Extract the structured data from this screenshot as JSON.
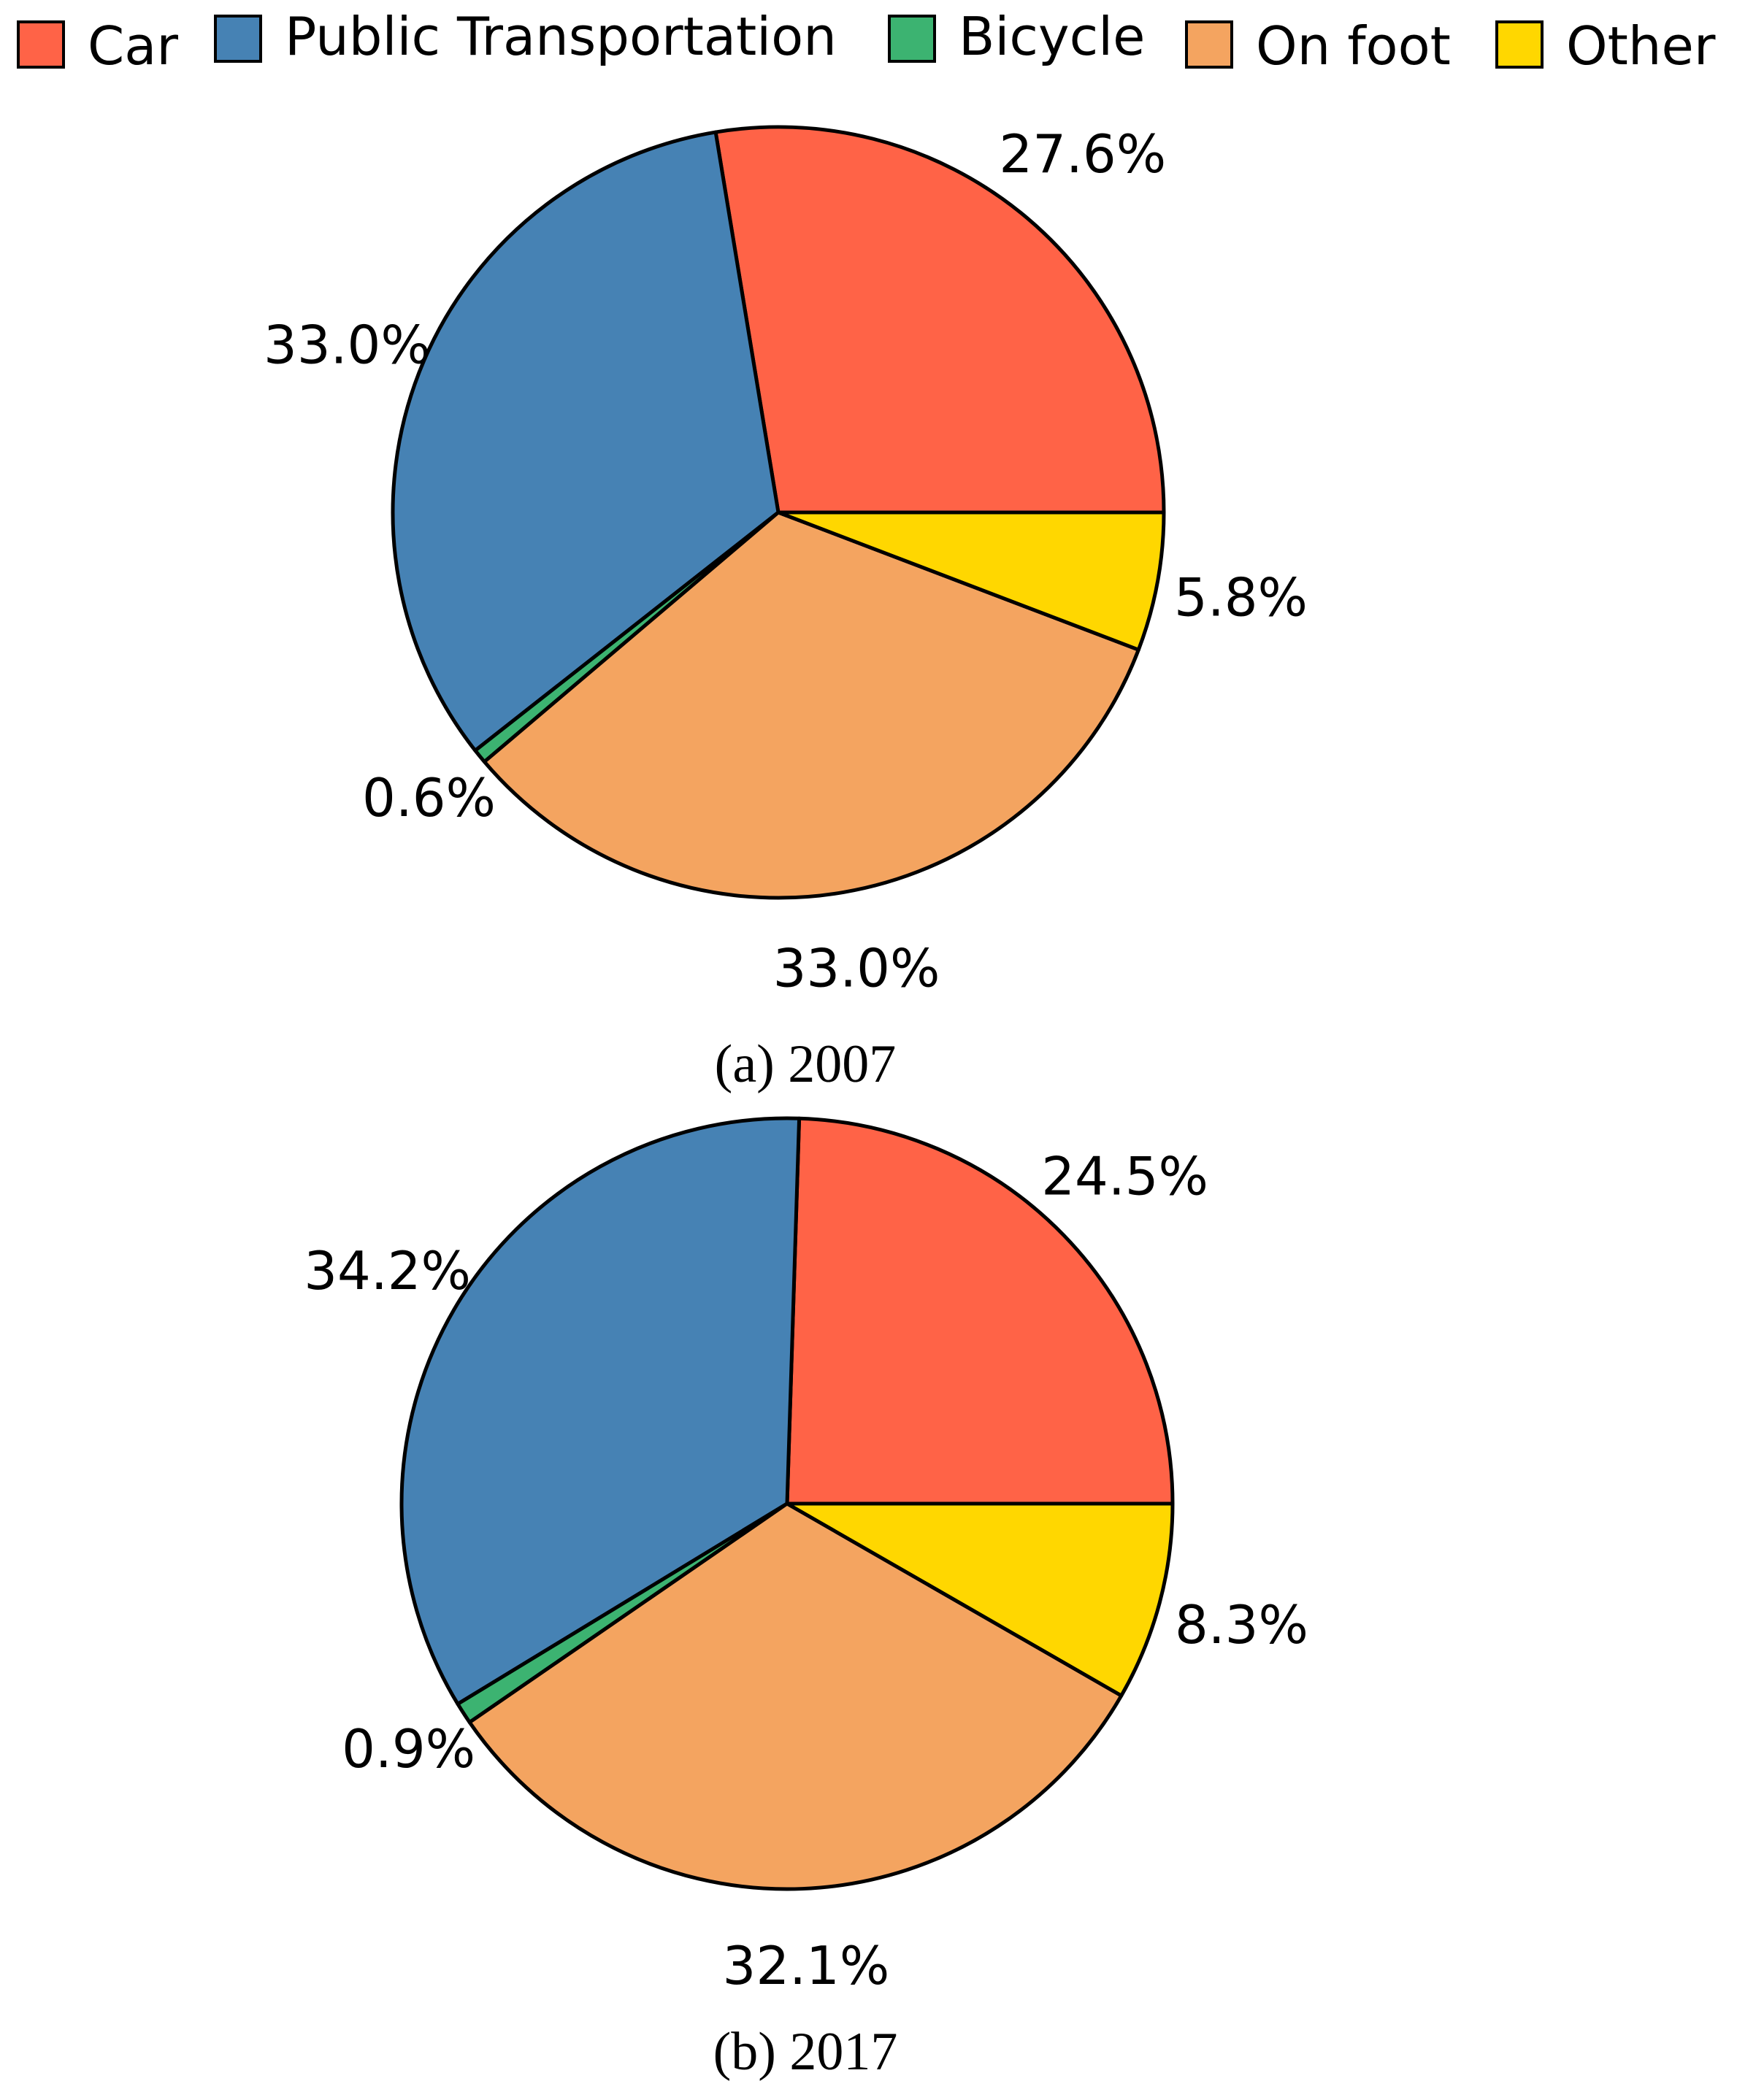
{
  "legend": {
    "items": [
      {
        "label": "Car",
        "color": "#FF6347"
      },
      {
        "label": "Public Transportation",
        "color": "#4682B4"
      },
      {
        "label": "Bicycle",
        "color": "#3CB371"
      },
      {
        "label": "On foot",
        "color": "#F4A460"
      },
      {
        "label": "Other",
        "color": "#FFD700"
      }
    ]
  },
  "chart_data": [
    {
      "type": "pie",
      "caption": "(a) 2007",
      "start_angle_deg": 0,
      "direction": "counterclockwise",
      "categories": [
        "Car",
        "Public Transportation",
        "Bicycle",
        "On foot",
        "Other"
      ],
      "values": [
        27.6,
        33.0,
        0.6,
        33.0,
        5.8
      ],
      "labels": [
        "27.6%",
        "33.0%",
        "0.6%",
        "33.0%",
        "5.8%"
      ],
      "colors": [
        "#FF6347",
        "#4682B4",
        "#3CB371",
        "#F4A460",
        "#FFD700"
      ]
    },
    {
      "type": "pie",
      "caption": "(b) 2017",
      "start_angle_deg": 0,
      "direction": "counterclockwise",
      "categories": [
        "Car",
        "Public Transportation",
        "Bicycle",
        "On foot",
        "Other"
      ],
      "values": [
        24.5,
        34.2,
        0.9,
        32.1,
        8.3
      ],
      "labels": [
        "24.5%",
        "34.2%",
        "0.9%",
        "32.1%",
        "8.3%"
      ],
      "colors": [
        "#FF6347",
        "#4682B4",
        "#3CB371",
        "#F4A460",
        "#FFD700"
      ]
    }
  ]
}
